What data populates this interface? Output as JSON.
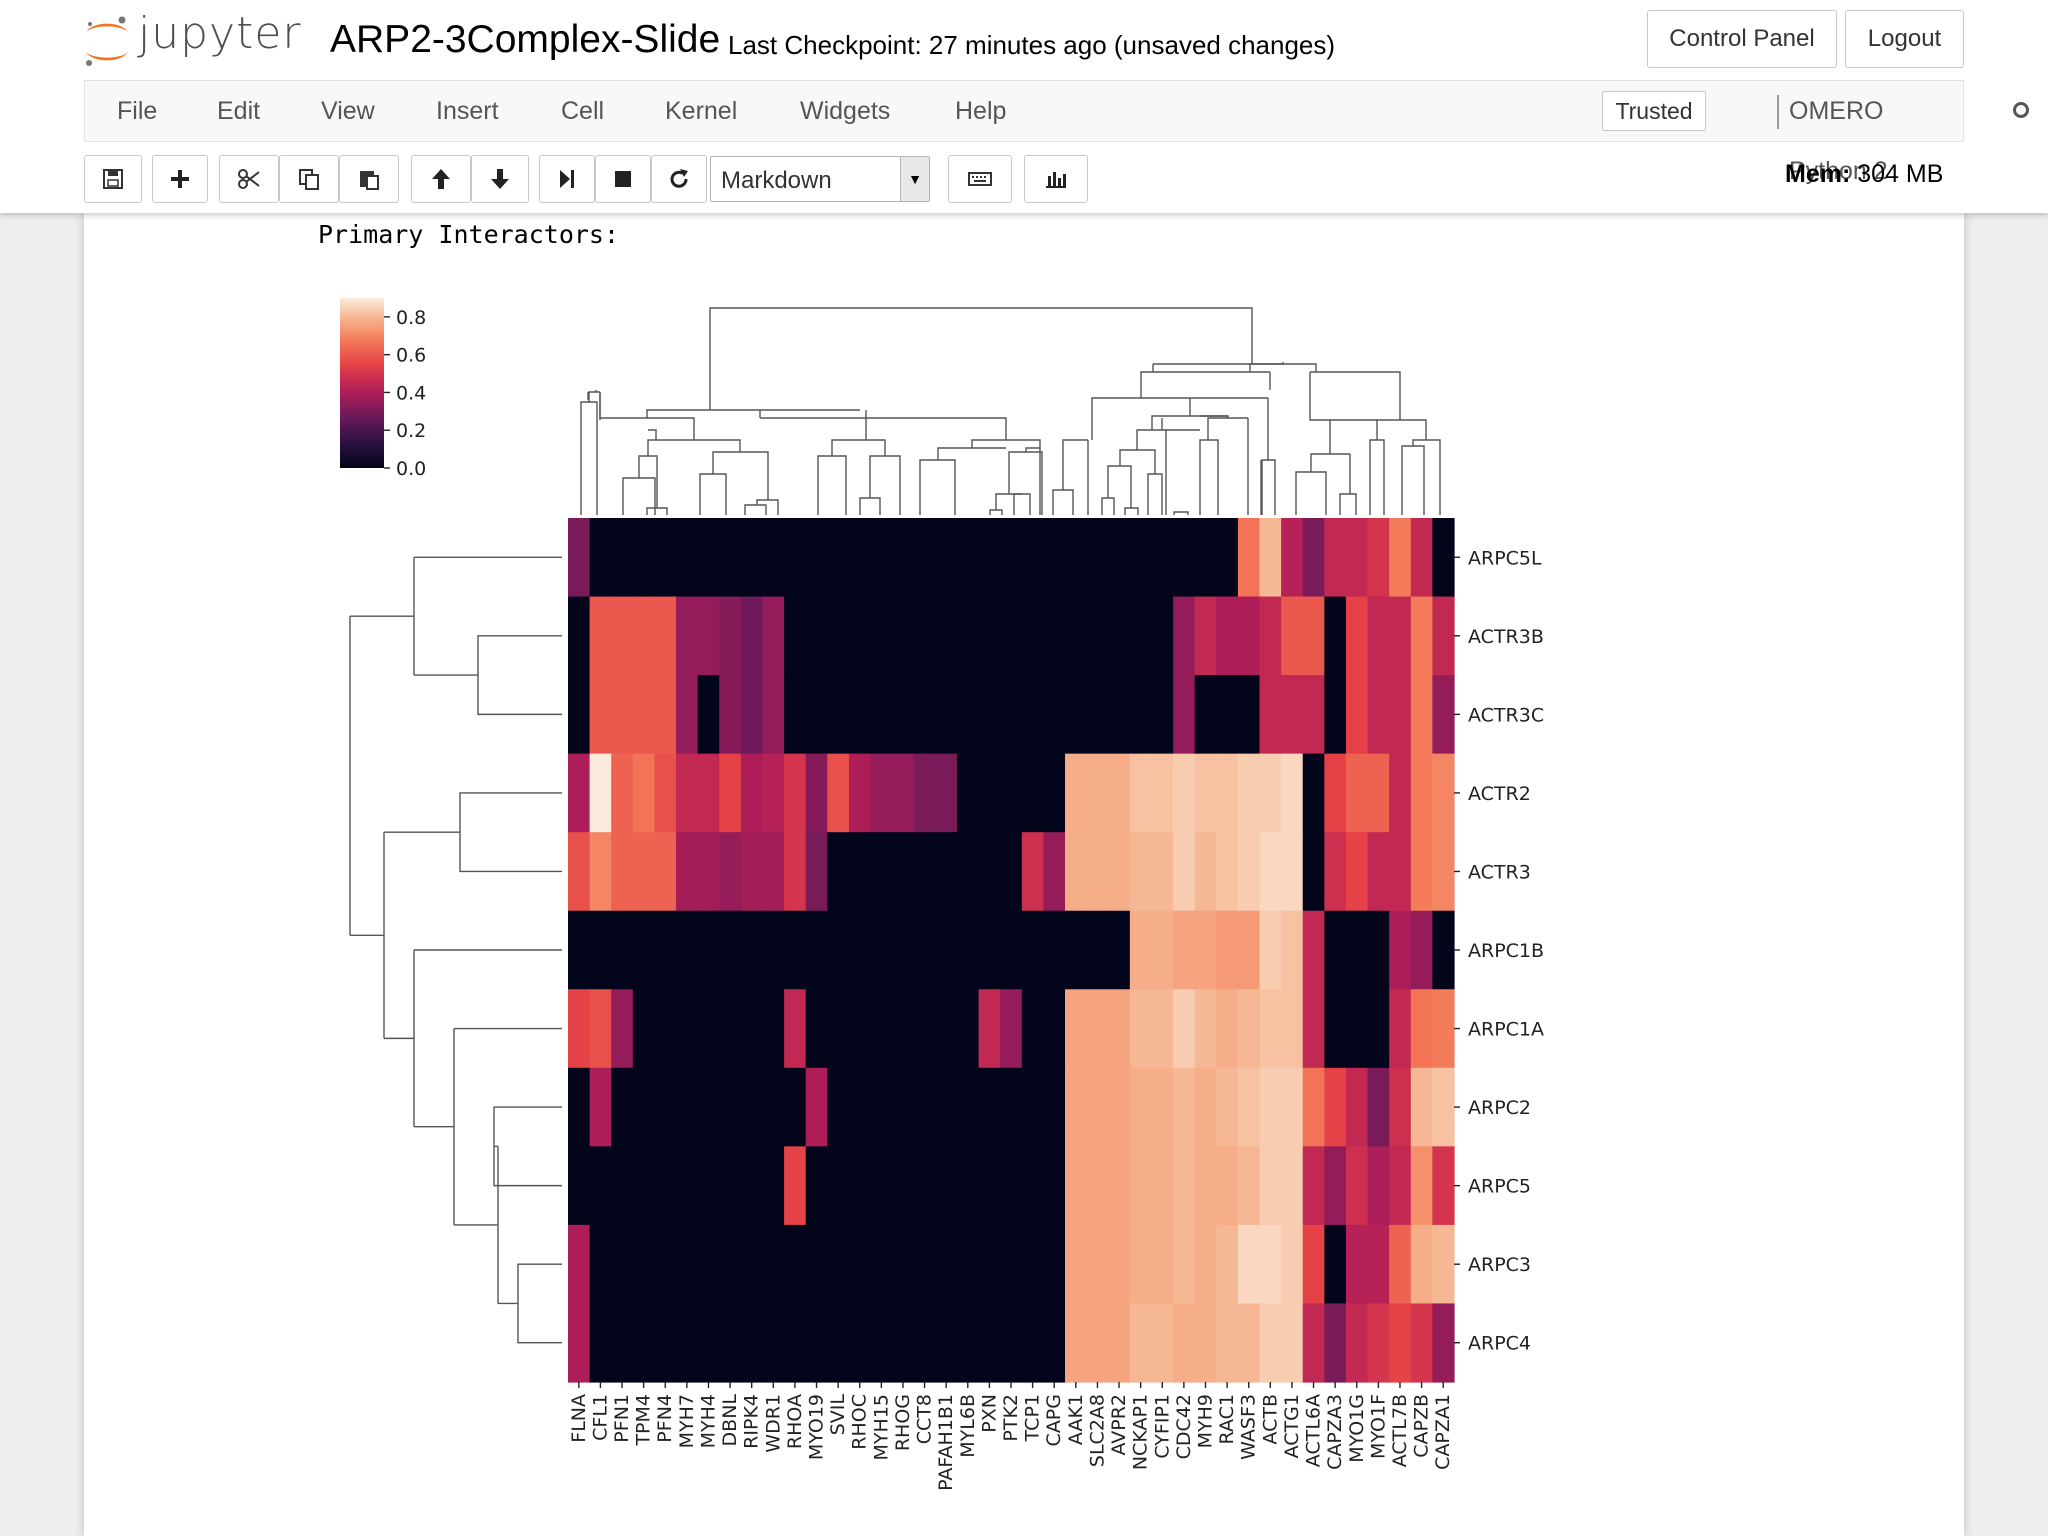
{
  "header": {
    "logo_text": "jupyter",
    "notebook_name": "ARP2-3Complex-Slide",
    "checkpoint": "Last Checkpoint: 27 minutes ago (unsaved changes)",
    "control_panel_label": "Control Panel",
    "logout_label": "Logout",
    "logo_colors": {
      "orange": "#f37626",
      "gray": "#767677"
    }
  },
  "menu": {
    "items": [
      "File",
      "Edit",
      "View",
      "Insert",
      "Cell",
      "Kernel",
      "Widgets",
      "Help"
    ],
    "trusted_label": "Trusted",
    "kernel_name": "OMERO Python 2"
  },
  "toolbar": {
    "buttons": [
      "save-icon",
      "add-cell-icon",
      "cut-icon",
      "copy-icon",
      "paste-icon",
      "move-up-icon",
      "move-down-icon",
      "run-icon",
      "stop-icon",
      "restart-icon",
      "keyboard-icon",
      "chart-icon"
    ],
    "cell_type": "Markdown",
    "mem_label": "Mem:",
    "mem_value": "304 MB"
  },
  "cell": {
    "text": "Primary Interactors:"
  },
  "chart_data": {
    "type": "heatmap",
    "colormap": "rocket",
    "colorbar": {
      "ticks": [
        "0.0",
        "0.2",
        "0.4",
        "0.6",
        "0.8"
      ],
      "range": [
        0,
        0.9
      ]
    },
    "columns": [
      "FLNA",
      "CFL1",
      "PFN1",
      "TPM4",
      "PFN4",
      "MYH7",
      "MYH4",
      "DBNL",
      "RIPK4",
      "WDR1",
      "RHOA",
      "MYO19",
      "SVIL",
      "RHOC",
      "MYH15",
      "RHOG",
      "CCT8",
      "PAFAH1B1",
      "MYL6B",
      "PXN",
      "PTK2",
      "TCP1",
      "CAPG",
      "AAK1",
      "SLC2A8",
      "AVPR2",
      "NCKAP1",
      "CYFIP1",
      "CDC42",
      "MYH9",
      "RAC1",
      "WASF3",
      "ACTB",
      "ACTG1",
      "ACTL6A",
      "CAPZA3",
      "MYO1G",
      "MYO1F",
      "ACTL7B",
      "CAPZB",
      "CAPZA1"
    ],
    "rows": [
      "ARPC5L",
      "ACTR3B",
      "ACTR3C",
      "ACTR2",
      "ACTR3",
      "ARPC1B",
      "ARPC1A",
      "ARPC2",
      "ARPC5",
      "ARPC3",
      "ARPC4"
    ],
    "values": [
      [
        0.3,
        0,
        0,
        0,
        0,
        0,
        0,
        0,
        0,
        0,
        0,
        0,
        0,
        0,
        0,
        0,
        0,
        0,
        0,
        0,
        0,
        0,
        0,
        0,
        0,
        0,
        0,
        0,
        0,
        0,
        0,
        0.66,
        0.8,
        0.42,
        0.3,
        0.45,
        0.45,
        0.5,
        0.68,
        0.45
      ],
      [
        0,
        0.6,
        0.6,
        0.6,
        0.6,
        0.35,
        0.35,
        0.32,
        0.28,
        0.35,
        0,
        0,
        0,
        0,
        0,
        0,
        0,
        0,
        0,
        0,
        0,
        0,
        0,
        0,
        0,
        0,
        0,
        0,
        0.35,
        0.45,
        0.4,
        0.4,
        0.45,
        0.6,
        0.6,
        0,
        0.55,
        0.45,
        0.45,
        0.68,
        0.45
      ],
      [
        0,
        0.6,
        0.6,
        0.6,
        0.6,
        0.35,
        0,
        0.32,
        0.28,
        0.35,
        0,
        0,
        0,
        0,
        0,
        0,
        0,
        0,
        0,
        0,
        0,
        0,
        0,
        0,
        0,
        0,
        0,
        0,
        0.35,
        0,
        0,
        0,
        0.45,
        0.45,
        0.45,
        0,
        0.55,
        0.45,
        0.45,
        0.68,
        0.35
      ],
      [
        0.4,
        0.9,
        0.62,
        0.66,
        0.58,
        0.45,
        0.45,
        0.55,
        0.4,
        0.42,
        0.5,
        0.32,
        0.58,
        0.4,
        0.35,
        0.35,
        0.3,
        0.3,
        0,
        0,
        0,
        0,
        0,
        0.78,
        0.78,
        0.78,
        0.82,
        0.82,
        0.84,
        0.82,
        0.82,
        0.84,
        0.84,
        0.86,
        0,
        0.55,
        0.62,
        0.62,
        0.45,
        0.68,
        0.7
      ],
      [
        0.58,
        0.7,
        0.62,
        0.62,
        0.62,
        0.38,
        0.38,
        0.35,
        0.38,
        0.38,
        0.5,
        0.3,
        0,
        0,
        0,
        0,
        0,
        0,
        0,
        0,
        0,
        0.48,
        0.35,
        0.78,
        0.78,
        0.78,
        0.8,
        0.8,
        0.84,
        0.8,
        0.82,
        0.84,
        0.86,
        0.86,
        0,
        0.48,
        0.55,
        0.45,
        0.45,
        0.68,
        0.7
      ],
      [
        0,
        0,
        0,
        0,
        0,
        0,
        0,
        0,
        0,
        0,
        0,
        0,
        0,
        0,
        0,
        0,
        0,
        0,
        0,
        0,
        0,
        0,
        0,
        0,
        0,
        0,
        0.78,
        0.78,
        0.76,
        0.76,
        0.74,
        0.74,
        0.84,
        0.82,
        0.45,
        0,
        0,
        0,
        0.4,
        0.35,
        0
      ],
      [
        0.55,
        0.58,
        0.35,
        0,
        0,
        0,
        0,
        0,
        0,
        0,
        0.45,
        0,
        0,
        0,
        0,
        0,
        0,
        0,
        0,
        0.45,
        0.35,
        0,
        0,
        0.76,
        0.76,
        0.76,
        0.8,
        0.8,
        0.84,
        0.8,
        0.78,
        0.8,
        0.82,
        0.82,
        0.45,
        0,
        0,
        0,
        0.45,
        0.66,
        0.68
      ],
      [
        0,
        0.4,
        0,
        0,
        0,
        0,
        0,
        0,
        0,
        0,
        0,
        0.4,
        0,
        0,
        0,
        0,
        0,
        0,
        0,
        0,
        0,
        0,
        0,
        0.76,
        0.76,
        0.76,
        0.78,
        0.78,
        0.8,
        0.78,
        0.8,
        0.82,
        0.84,
        0.84,
        0.66,
        0.55,
        0.45,
        0.3,
        0.48,
        0.8,
        0.82
      ],
      [
        0,
        0,
        0,
        0,
        0,
        0,
        0,
        0,
        0,
        0,
        0.55,
        0,
        0,
        0,
        0,
        0,
        0,
        0,
        0,
        0,
        0,
        0,
        0,
        0.76,
        0.76,
        0.76,
        0.78,
        0.78,
        0.8,
        0.78,
        0.78,
        0.8,
        0.84,
        0.84,
        0.45,
        0.35,
        0.48,
        0.4,
        0.45,
        0.72,
        0.5
      ],
      [
        0.4,
        0,
        0,
        0,
        0,
        0,
        0,
        0,
        0,
        0,
        0,
        0,
        0,
        0,
        0,
        0,
        0,
        0,
        0,
        0,
        0,
        0,
        0,
        0.76,
        0.76,
        0.76,
        0.78,
        0.78,
        0.8,
        0.78,
        0.8,
        0.86,
        0.86,
        0.84,
        0.55,
        0,
        0.42,
        0.42,
        0.62,
        0.78,
        0.8
      ],
      [
        0.4,
        0,
        0,
        0,
        0,
        0,
        0,
        0,
        0,
        0,
        0,
        0,
        0,
        0,
        0,
        0,
        0,
        0,
        0,
        0,
        0,
        0,
        0,
        0.76,
        0.76,
        0.76,
        0.8,
        0.8,
        0.78,
        0.78,
        0.8,
        0.8,
        0.84,
        0.84,
        0.45,
        0.3,
        0.45,
        0.5,
        0.55,
        0.5,
        0.35
      ]
    ]
  }
}
